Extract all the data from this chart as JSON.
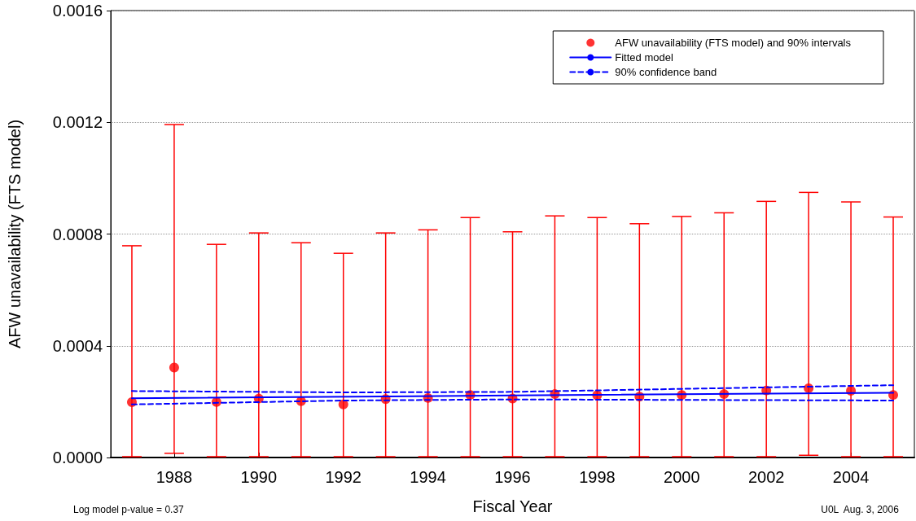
{
  "chart_data": {
    "type": "scatter",
    "xlabel": "Fiscal Year",
    "ylabel": "AFW unavailability (FTS model)",
    "x": [
      1987,
      1988,
      1989,
      1990,
      1991,
      1992,
      1993,
      1994,
      1995,
      1996,
      1997,
      1998,
      1999,
      2000,
      2001,
      2002,
      2003,
      2004,
      2005
    ],
    "series": [
      {
        "name": "AFW unavailability (FTS model) and 90% intervals",
        "color": "#ff0000",
        "marker": "circle",
        "values": [
          0.000198,
          0.000322,
          0.000199,
          0.000211,
          0.000202,
          0.00019,
          0.000209,
          0.000213,
          0.000224,
          0.000211,
          0.000227,
          0.000223,
          0.000218,
          0.000224,
          0.000227,
          0.00024,
          0.000248,
          0.000239,
          0.000224
        ],
        "errors": [
          [
            3e-06,
            0.000758
          ],
          [
            1.5e-05,
            0.001192
          ],
          [
            3e-06,
            0.000763
          ],
          [
            3e-06,
            0.000804
          ],
          [
            3e-06,
            0.000769
          ],
          [
            3e-06,
            0.000731
          ],
          [
            3e-06,
            0.000804
          ],
          [
            3e-06,
            0.000815
          ],
          [
            3e-06,
            0.000859
          ],
          [
            3e-06,
            0.000808
          ],
          [
            3e-06,
            0.000865
          ],
          [
            3e-06,
            0.000859
          ],
          [
            3e-06,
            0.000837
          ],
          [
            3e-06,
            0.000863
          ],
          [
            3e-06,
            0.000876
          ],
          [
            3e-06,
            0.000917
          ],
          [
            8e-06,
            0.000949
          ],
          [
            3e-06,
            0.000915
          ],
          [
            3e-06,
            0.000861
          ]
        ]
      },
      {
        "type": "line",
        "name": "Fitted model",
        "color": "#0000ff",
        "line_style": "solid",
        "marker": "none",
        "x": [
          1987,
          1996,
          2005
        ],
        "values": [
          0.000212,
          0.000222,
          0.000232
        ]
      },
      {
        "type": "line",
        "name": "90% confidence band",
        "color": "#0000ff",
        "line_style": "dashed",
        "marker": "none",
        "x": [
          1987,
          1992,
          1996,
          2005
        ],
        "values": [
          0.000238,
          0.000233,
          0.000235,
          0.000259
        ]
      },
      {
        "type": "line",
        "color": "#0000ff",
        "line_style": "dashed",
        "marker": "none",
        "x": [
          1987,
          1992,
          1996,
          2005
        ],
        "values": [
          0.00019,
          0.000204,
          0.000208,
          0.000204
        ]
      }
    ],
    "xlim": [
      1986.5,
      2005.5
    ],
    "xticks": [
      1988,
      1990,
      1992,
      1994,
      1996,
      1998,
      2000,
      2002,
      2004
    ],
    "ylim": [
      0,
      0.0016
    ],
    "yticks": [
      {
        "value": 0,
        "label": "0.0000"
      },
      0.0004,
      0.0008,
      0.0012,
      0.0016
    ],
    "grid": "y",
    "legend": "top right",
    "annotations": [
      "Log model p-value = 0.37",
      "U0L  Aug. 3, 2006"
    ]
  }
}
